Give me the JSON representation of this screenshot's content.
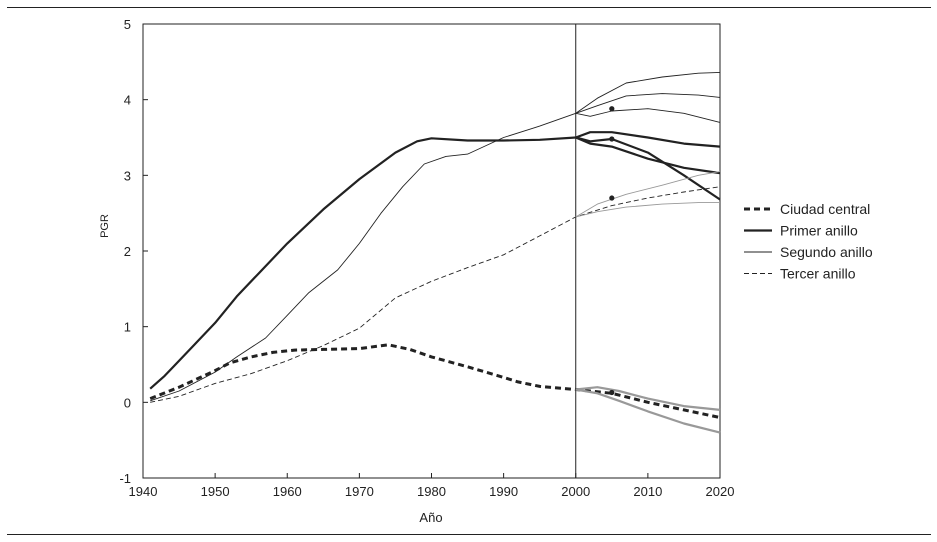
{
  "chart_data": {
    "type": "line",
    "title": "",
    "xlabel": "Año",
    "ylabel": "PGR",
    "xlim": [
      1940,
      2020
    ],
    "ylim": [
      -1,
      5
    ],
    "xticks": [
      1940,
      1950,
      1960,
      1970,
      1980,
      1990,
      2000,
      2010,
      2020
    ],
    "yticks": [
      -1,
      0,
      1,
      2,
      3,
      4,
      5
    ],
    "grid": false,
    "legend_placement": "right",
    "vertical_reference_line": 2000,
    "series": [
      {
        "name": "Ciudad central",
        "style": "thick-dashed",
        "color": "#222222",
        "points": [
          [
            1941,
            0.05
          ],
          [
            1945,
            0.2
          ],
          [
            1950,
            0.42
          ],
          [
            1952,
            0.52
          ],
          [
            1955,
            0.6
          ],
          [
            1958,
            0.66
          ],
          [
            1961,
            0.69
          ],
          [
            1965,
            0.7
          ],
          [
            1970,
            0.71
          ],
          [
            1974,
            0.76
          ],
          [
            1977,
            0.7
          ],
          [
            1980,
            0.6
          ],
          [
            1985,
            0.47
          ],
          [
            1990,
            0.33
          ],
          [
            1992,
            0.27
          ],
          [
            1995,
            0.21
          ],
          [
            2000,
            0.17
          ],
          [
            2005,
            0.12
          ],
          [
            2010,
            0.0
          ],
          [
            2015,
            -0.1
          ],
          [
            2020,
            -0.2
          ]
        ]
      },
      {
        "name": "Primer anillo",
        "style": "thick-solid",
        "color": "#222222",
        "points": [
          [
            1941,
            0.18
          ],
          [
            1943,
            0.35
          ],
          [
            1945,
            0.55
          ],
          [
            1947,
            0.75
          ],
          [
            1950,
            1.05
          ],
          [
            1953,
            1.4
          ],
          [
            1956,
            1.7
          ],
          [
            1960,
            2.1
          ],
          [
            1965,
            2.55
          ],
          [
            1970,
            2.95
          ],
          [
            1975,
            3.3
          ],
          [
            1978,
            3.45
          ],
          [
            1980,
            3.49
          ],
          [
            1985,
            3.46
          ],
          [
            1990,
            3.46
          ],
          [
            1995,
            3.47
          ],
          [
            2000,
            3.5
          ]
        ]
      },
      {
        "name": "Segundo anillo",
        "style": "thin-solid",
        "color": "#222222",
        "points": [
          [
            1941,
            0.02
          ],
          [
            1945,
            0.15
          ],
          [
            1950,
            0.4
          ],
          [
            1953,
            0.6
          ],
          [
            1957,
            0.85
          ],
          [
            1960,
            1.15
          ],
          [
            1963,
            1.45
          ],
          [
            1967,
            1.75
          ],
          [
            1970,
            2.1
          ],
          [
            1973,
            2.5
          ],
          [
            1976,
            2.85
          ],
          [
            1979,
            3.15
          ],
          [
            1982,
            3.25
          ],
          [
            1985,
            3.28
          ],
          [
            1990,
            3.5
          ],
          [
            1995,
            3.65
          ],
          [
            2000,
            3.82
          ]
        ]
      },
      {
        "name": "Tercer anillo",
        "style": "thin-dashed",
        "color": "#222222",
        "points": [
          [
            1941,
            0.0
          ],
          [
            1945,
            0.08
          ],
          [
            1950,
            0.25
          ],
          [
            1955,
            0.38
          ],
          [
            1960,
            0.55
          ],
          [
            1965,
            0.75
          ],
          [
            1970,
            0.98
          ],
          [
            1975,
            1.38
          ],
          [
            1980,
            1.6
          ],
          [
            1985,
            1.78
          ],
          [
            1990,
            1.95
          ],
          [
            1995,
            2.2
          ],
          [
            2000,
            2.45
          ],
          [
            2005,
            2.6
          ],
          [
            2010,
            2.7
          ],
          [
            2015,
            2.78
          ],
          [
            2020,
            2.85
          ]
        ]
      },
      {
        "name": "",
        "style": "thick-solid",
        "color": "#222222",
        "role": "projection",
        "points": [
          [
            2000,
            3.5
          ],
          [
            2002,
            3.57
          ],
          [
            2005,
            3.57
          ],
          [
            2010,
            3.5
          ],
          [
            2015,
            3.42
          ],
          [
            2020,
            3.38
          ]
        ]
      },
      {
        "name": "",
        "style": "thick-solid",
        "color": "#222222",
        "role": "projection",
        "points": [
          [
            2000,
            3.5
          ],
          [
            2002,
            3.42
          ],
          [
            2005,
            3.38
          ],
          [
            2010,
            3.22
          ],
          [
            2015,
            3.1
          ],
          [
            2020,
            3.03
          ]
        ]
      },
      {
        "name": "",
        "style": "thick-solid",
        "color": "#222222",
        "role": "projection",
        "points": [
          [
            2000,
            3.5
          ],
          [
            2002,
            3.45
          ],
          [
            2005,
            3.48
          ],
          [
            2010,
            3.3
          ],
          [
            2015,
            3.0
          ],
          [
            2020,
            2.68
          ]
        ]
      },
      {
        "name": "",
        "style": "thin-solid",
        "color": "#222222",
        "role": "projection",
        "points": [
          [
            2000,
            3.82
          ],
          [
            2003,
            4.02
          ],
          [
            2007,
            4.22
          ],
          [
            2012,
            4.3
          ],
          [
            2017,
            4.35
          ],
          [
            2020,
            4.36
          ]
        ]
      },
      {
        "name": "",
        "style": "thin-solid",
        "color": "#222222",
        "role": "projection",
        "points": [
          [
            2000,
            3.82
          ],
          [
            2003,
            3.92
          ],
          [
            2007,
            4.05
          ],
          [
            2012,
            4.08
          ],
          [
            2017,
            4.06
          ],
          [
            2020,
            4.03
          ]
        ]
      },
      {
        "name": "",
        "style": "thin-solid",
        "color": "#222222",
        "role": "projection",
        "points": [
          [
            2000,
            3.82
          ],
          [
            2002,
            3.78
          ],
          [
            2005,
            3.85
          ],
          [
            2010,
            3.88
          ],
          [
            2015,
            3.82
          ],
          [
            2020,
            3.7
          ]
        ]
      },
      {
        "name": "",
        "style": "thin-solid",
        "color": "#999999",
        "role": "projection",
        "points": [
          [
            2000,
            2.45
          ],
          [
            2003,
            2.62
          ],
          [
            2007,
            2.75
          ],
          [
            2012,
            2.87
          ],
          [
            2017,
            3.0
          ],
          [
            2020,
            3.05
          ]
        ]
      },
      {
        "name": "",
        "style": "thin-solid",
        "color": "#999999",
        "role": "projection",
        "points": [
          [
            2000,
            2.45
          ],
          [
            2003,
            2.52
          ],
          [
            2007,
            2.58
          ],
          [
            2012,
            2.62
          ],
          [
            2017,
            2.64
          ],
          [
            2020,
            2.64
          ]
        ]
      },
      {
        "name": "",
        "style": "thick-solid",
        "color": "#999999",
        "role": "projection",
        "points": [
          [
            2000,
            0.17
          ],
          [
            2003,
            0.2
          ],
          [
            2006,
            0.15
          ],
          [
            2010,
            0.05
          ],
          [
            2015,
            -0.05
          ],
          [
            2020,
            -0.1
          ]
        ]
      },
      {
        "name": "",
        "style": "thick-solid",
        "color": "#999999",
        "role": "projection",
        "points": [
          [
            2000,
            0.17
          ],
          [
            2003,
            0.12
          ],
          [
            2006,
            0.02
          ],
          [
            2010,
            -0.12
          ],
          [
            2015,
            -0.28
          ],
          [
            2020,
            -0.4
          ]
        ]
      }
    ],
    "markers": [
      [
        2005,
        3.88
      ],
      [
        2005,
        3.48
      ],
      [
        2005,
        2.7
      ],
      [
        2005,
        0.13
      ]
    ]
  }
}
